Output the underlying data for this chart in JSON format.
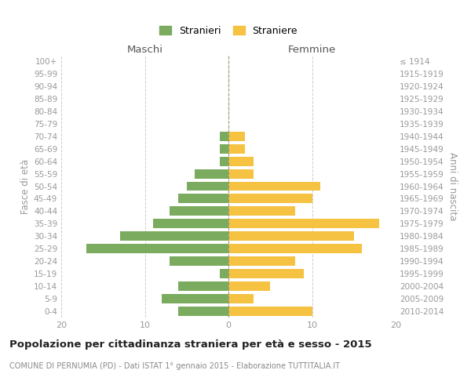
{
  "age_groups": [
    "0-4",
    "5-9",
    "10-14",
    "15-19",
    "20-24",
    "25-29",
    "30-34",
    "35-39",
    "40-44",
    "45-49",
    "50-54",
    "55-59",
    "60-64",
    "65-69",
    "70-74",
    "75-79",
    "80-84",
    "85-89",
    "90-94",
    "95-99",
    "100+"
  ],
  "birth_years": [
    "2010-2014",
    "2005-2009",
    "2000-2004",
    "1995-1999",
    "1990-1994",
    "1985-1989",
    "1980-1984",
    "1975-1979",
    "1970-1974",
    "1965-1969",
    "1960-1964",
    "1955-1959",
    "1950-1954",
    "1945-1949",
    "1940-1944",
    "1935-1939",
    "1930-1934",
    "1925-1929",
    "1920-1924",
    "1915-1919",
    "≤ 1914"
  ],
  "males": [
    6,
    8,
    6,
    1,
    7,
    17,
    13,
    9,
    7,
    6,
    5,
    4,
    1,
    1,
    1,
    0,
    0,
    0,
    0,
    0,
    0
  ],
  "females": [
    10,
    3,
    5,
    9,
    8,
    16,
    15,
    18,
    8,
    10,
    11,
    3,
    3,
    2,
    2,
    0,
    0,
    0,
    0,
    0,
    0
  ],
  "male_color": "#7aab5e",
  "female_color": "#f5c242",
  "background_color": "#ffffff",
  "grid_color": "#cccccc",
  "title": "Popolazione per cittadinanza straniera per età e sesso - 2015",
  "subtitle": "COMUNE DI PERNUMIA (PD) - Dati ISTAT 1° gennaio 2015 - Elaborazione TUTTITALIA.IT",
  "ylabel_left": "Fasce di età",
  "ylabel_right": "Anni di nascita",
  "xlabel_males": "Maschi",
  "xlabel_females": "Femmine",
  "legend_males": "Stranieri",
  "legend_females": "Straniere",
  "xlim": 20,
  "bar_height": 0.75
}
